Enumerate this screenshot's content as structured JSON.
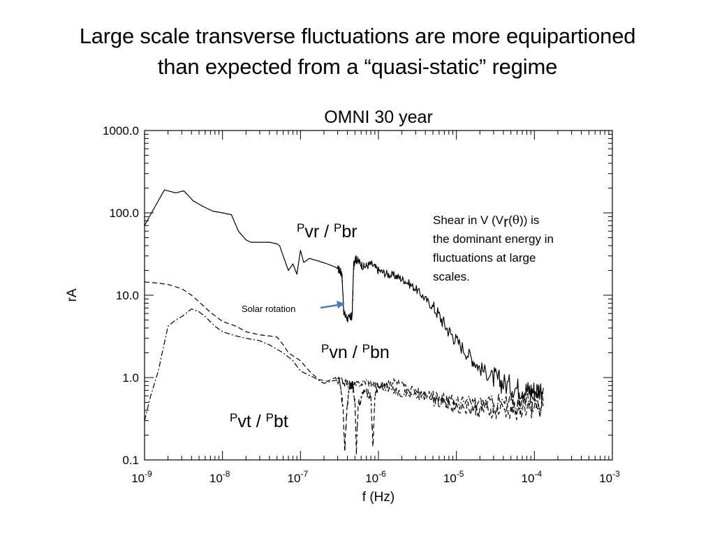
{
  "slide": {
    "title_line1": "Large scale transverse fluctuations are more equipartioned",
    "title_line2": "than expected from a “quasi-static” regime"
  },
  "chart_data": {
    "type": "line",
    "title": "OMNI 30 year",
    "xlabel": "f (Hz)",
    "ylabel": "rA",
    "x_scale": "log",
    "y_scale": "log",
    "xlim": [
      1e-09,
      0.001
    ],
    "ylim": [
      0.1,
      1000
    ],
    "grid": false,
    "x_ticks": [
      {
        "base": "10",
        "exp": "-9",
        "value": 1e-09
      },
      {
        "base": "10",
        "exp": "-8",
        "value": 1e-08
      },
      {
        "base": "10",
        "exp": "-7",
        "value": 1e-07
      },
      {
        "base": "10",
        "exp": "-6",
        "value": 1e-06
      },
      {
        "base": "10",
        "exp": "-5",
        "value": 1e-05
      },
      {
        "base": "10",
        "exp": "-4",
        "value": 0.0001
      },
      {
        "base": "10",
        "exp": "-3",
        "value": 0.001
      }
    ],
    "y_ticks": [
      {
        "label": "0.1",
        "value": 0.1
      },
      {
        "label": "1.0",
        "value": 1
      },
      {
        "label": "10.0",
        "value": 10
      },
      {
        "label": "100.0",
        "value": 100
      },
      {
        "label": "1000.0",
        "value": 1000
      }
    ],
    "series": [
      {
        "key": "vr_br",
        "style": "solid",
        "label": {
          "p1": "P",
          "s1": "vr",
          "sep": " / ",
          "p2": "P",
          "s2": "br"
        },
        "x": [
          1e-09,
          1.3e-09,
          1.8e-09,
          2.5e-09,
          3.2e-09,
          4.2e-09,
          5.6e-09,
          7.5e-09,
          1e-08,
          1.3e-08,
          1.6e-08,
          2e-08,
          2.3e-08,
          3e-08,
          4e-08,
          5e-08,
          5.4e-08,
          6e-08,
          7e-08,
          8e-08,
          9e-08,
          1e-07,
          1.1e-07,
          1.3e-07,
          1.7e-07,
          2.2e-07,
          2.8e-07,
          3.2e-07,
          3.4e-07,
          3.6e-07,
          4e-07,
          4.4e-07,
          4.6e-07,
          4.8e-07,
          5e-07,
          5.5e-07,
          6.5e-07,
          8e-07,
          1e-06,
          1.3e-06,
          1.7e-06,
          2.2e-06,
          3e-06,
          4e-06,
          5.5e-06,
          7.5e-06,
          1e-05,
          1.5e-05,
          2e-05,
          3e-05,
          4e-05,
          6e-05,
          8e-05,
          0.0001,
          0.00013
        ],
        "y": [
          70,
          110,
          190,
          175,
          185,
          140,
          120,
          105,
          100,
          95,
          60,
          47,
          44,
          44,
          44,
          42,
          40,
          30,
          20,
          24,
          18,
          35,
          25,
          28,
          26,
          24,
          22,
          20,
          18,
          6,
          5.2,
          5.4,
          5.6,
          22,
          28,
          26,
          22,
          24,
          20,
          18,
          17,
          15,
          12,
          9,
          6.5,
          4,
          2.8,
          1.8,
          1.3,
          1.0,
          0.85,
          0.75,
          0.7,
          0.7,
          0.75
        ]
      },
      {
        "key": "vn_bn",
        "style": "dashed",
        "label": {
          "p1": "P",
          "s1": "vn",
          "sep": " / ",
          "p2": "P",
          "s2": "bn"
        },
        "x": [
          1e-09,
          1.5e-09,
          2e-09,
          3e-09,
          4e-09,
          5e-09,
          7e-09,
          1e-08,
          1.5e-08,
          2e-08,
          3e-08,
          4e-08,
          5e-08,
          6e-08,
          7e-08,
          1e-07,
          1.3e-07,
          1.7e-07,
          2.2e-07,
          2.8e-07,
          3.2e-07,
          3.5e-07,
          3.7e-07,
          3.9e-07,
          4.2e-07,
          4.6e-07,
          5e-07,
          5.2e-07,
          5.5e-07,
          6.5e-07,
          8e-07,
          8.5e-07,
          9e-07,
          1e-06,
          1.3e-06,
          1.7e-06,
          2.2e-06,
          3e-06,
          4e-06,
          5.5e-06,
          7.5e-06,
          1e-05,
          1.5e-05,
          2e-05,
          3e-05,
          5e-05,
          8e-05,
          0.00013
        ],
        "y": [
          14.5,
          14,
          13.5,
          12,
          10,
          8.3,
          6.2,
          4.8,
          4.2,
          3.6,
          3.3,
          3.2,
          3.1,
          2.5,
          2.0,
          1.6,
          1.2,
          0.95,
          0.9,
          1.0,
          0.85,
          0.45,
          0.13,
          0.35,
          0.75,
          0.85,
          0.5,
          0.13,
          0.45,
          0.7,
          0.6,
          0.14,
          0.6,
          0.8,
          0.85,
          0.9,
          0.75,
          0.7,
          0.65,
          0.6,
          0.5,
          0.45,
          0.42,
          0.4,
          0.38,
          0.4,
          0.42,
          0.45
        ]
      },
      {
        "key": "vt_bt",
        "style": "dashdot",
        "label": {
          "p1": "P",
          "s1": "vt",
          "sep": " / ",
          "p2": "P",
          "s2": "bt"
        },
        "x": [
          1e-09,
          1.2e-09,
          1.5e-09,
          2e-09,
          2.5e-09,
          3e-09,
          4e-09,
          5e-09,
          6e-09,
          8e-09,
          1e-08,
          1.5e-08,
          2e-08,
          3e-08,
          4e-08,
          5e-08,
          6e-08,
          8e-08,
          1e-07,
          1.5e-07,
          2e-07,
          3e-07,
          4e-07,
          5e-07,
          7e-07,
          1e-06,
          1.5e-06,
          2e-06,
          3e-06,
          5e-06,
          8e-06,
          1.2e-05,
          2e-05,
          3e-05,
          5e-05,
          8e-05,
          0.00013
        ],
        "y": [
          0.3,
          0.6,
          1.2,
          4.2,
          5.0,
          5.5,
          6.8,
          6.3,
          5.5,
          4.2,
          3.6,
          3.2,
          3.0,
          2.8,
          2.5,
          2.2,
          2.0,
          1.6,
          1.2,
          1.0,
          0.85,
          0.95,
          0.85,
          0.8,
          0.9,
          0.8,
          0.7,
          0.65,
          0.6,
          0.55,
          0.52,
          0.5,
          0.5,
          0.5,
          0.48,
          0.5,
          0.52
        ]
      }
    ],
    "annotations": {
      "shear_lines": [
        {
          "text_a": "Shear in V (V",
          "text_r": "r",
          "text_b": "(",
          "text_theta": "θ",
          "text_c": ")) is"
        },
        {
          "text": "the dominant energy in"
        },
        {
          "text": "fluctuations at large"
        },
        {
          "text": "scales."
        }
      ],
      "solar_rotation": "Solar rotation",
      "arrow_color": "#4a7ab8"
    }
  }
}
